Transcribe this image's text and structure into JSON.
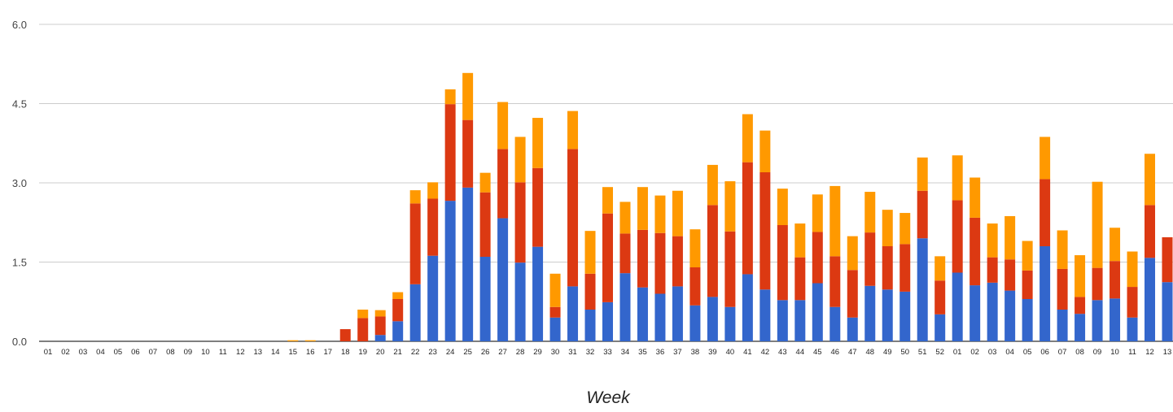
{
  "chart_data": {
    "type": "bar",
    "stacked": true,
    "xlabel": "Week",
    "ylabel": "",
    "ylim": [
      0,
      6
    ],
    "yticks": [
      "0.0",
      "1.5",
      "3.0",
      "4.5",
      "6.0"
    ],
    "grid": true,
    "legend": "none",
    "categories": [
      "01",
      "02",
      "03",
      "04",
      "05",
      "06",
      "07",
      "08",
      "09",
      "10",
      "11",
      "12",
      "13",
      "14",
      "15",
      "16",
      "17",
      "18",
      "19",
      "20",
      "21",
      "22",
      "23",
      "24",
      "25",
      "26",
      "27",
      "28",
      "29",
      "30",
      "31",
      "32",
      "33",
      "34",
      "35",
      "36",
      "37",
      "38",
      "39",
      "40",
      "41",
      "42",
      "43",
      "44",
      "45",
      "46",
      "47",
      "48",
      "49",
      "50",
      "51",
      "52",
      "01",
      "02",
      "03",
      "04",
      "05",
      "06",
      "07",
      "08",
      "09",
      "10",
      "11",
      "12",
      "13"
    ],
    "series": [
      {
        "color": "#3366cc",
        "values": [
          0,
          0,
          0,
          0,
          0,
          0,
          0,
          0,
          0,
          0,
          0,
          0,
          0,
          0,
          0,
          0,
          0,
          0,
          0,
          0.12,
          0.38,
          1.08,
          1.62,
          2.66,
          2.91,
          1.6,
          2.33,
          1.49,
          1.79,
          0.45,
          1.04,
          0.6,
          0.74,
          1.29,
          1.02,
          0.9,
          1.04,
          0.68,
          0.84,
          0.65,
          1.27,
          0.98,
          0.78,
          0.78,
          1.1,
          0.65,
          0.45,
          1.05,
          0.98,
          0.94,
          1.95,
          0.51,
          1.3,
          1.06,
          1.11,
          0.96,
          0.8,
          1.8,
          0.6,
          0.52,
          0.78,
          0.81,
          0.45,
          1.58,
          1.12
        ]
      },
      {
        "color": "#dc3912",
        "values": [
          0,
          0,
          0,
          0,
          0,
          0,
          0,
          0,
          0,
          0,
          0,
          0,
          0,
          0,
          0,
          0,
          0,
          0.23,
          0.44,
          0.35,
          0.42,
          1.53,
          1.08,
          1.83,
          1.28,
          1.22,
          1.31,
          1.52,
          1.49,
          0.2,
          2.6,
          0.68,
          1.68,
          0.75,
          1.09,
          1.15,
          0.95,
          0.72,
          1.74,
          1.43,
          2.12,
          2.22,
          1.42,
          0.81,
          0.97,
          0.96,
          0.9,
          1.01,
          0.82,
          0.9,
          0.9,
          0.64,
          1.37,
          1.28,
          0.48,
          0.59,
          0.54,
          1.27,
          0.77,
          0.32,
          0.61,
          0.71,
          0.58,
          1.0,
          0.85
        ]
      },
      {
        "color": "#ff9900",
        "values": [
          0,
          0,
          0,
          0,
          0,
          0,
          0,
          0,
          0,
          0,
          0,
          0,
          0,
          0,
          0.02,
          0.02,
          0,
          0,
          0.16,
          0.12,
          0.13,
          0.25,
          0.31,
          0.28,
          0.89,
          0.37,
          0.89,
          0.86,
          0.95,
          0.63,
          0.72,
          0.81,
          0.5,
          0.6,
          0.81,
          0.71,
          0.86,
          0.72,
          0.76,
          0.95,
          0.91,
          0.79,
          0.69,
          0.64,
          0.71,
          1.33,
          0.64,
          0.77,
          0.69,
          0.59,
          0.63,
          0.46,
          0.85,
          0.76,
          0.64,
          0.82,
          0.56,
          0.8,
          0.73,
          0.79,
          1.63,
          0.63,
          0.67,
          0.97,
          0
        ]
      }
    ]
  }
}
